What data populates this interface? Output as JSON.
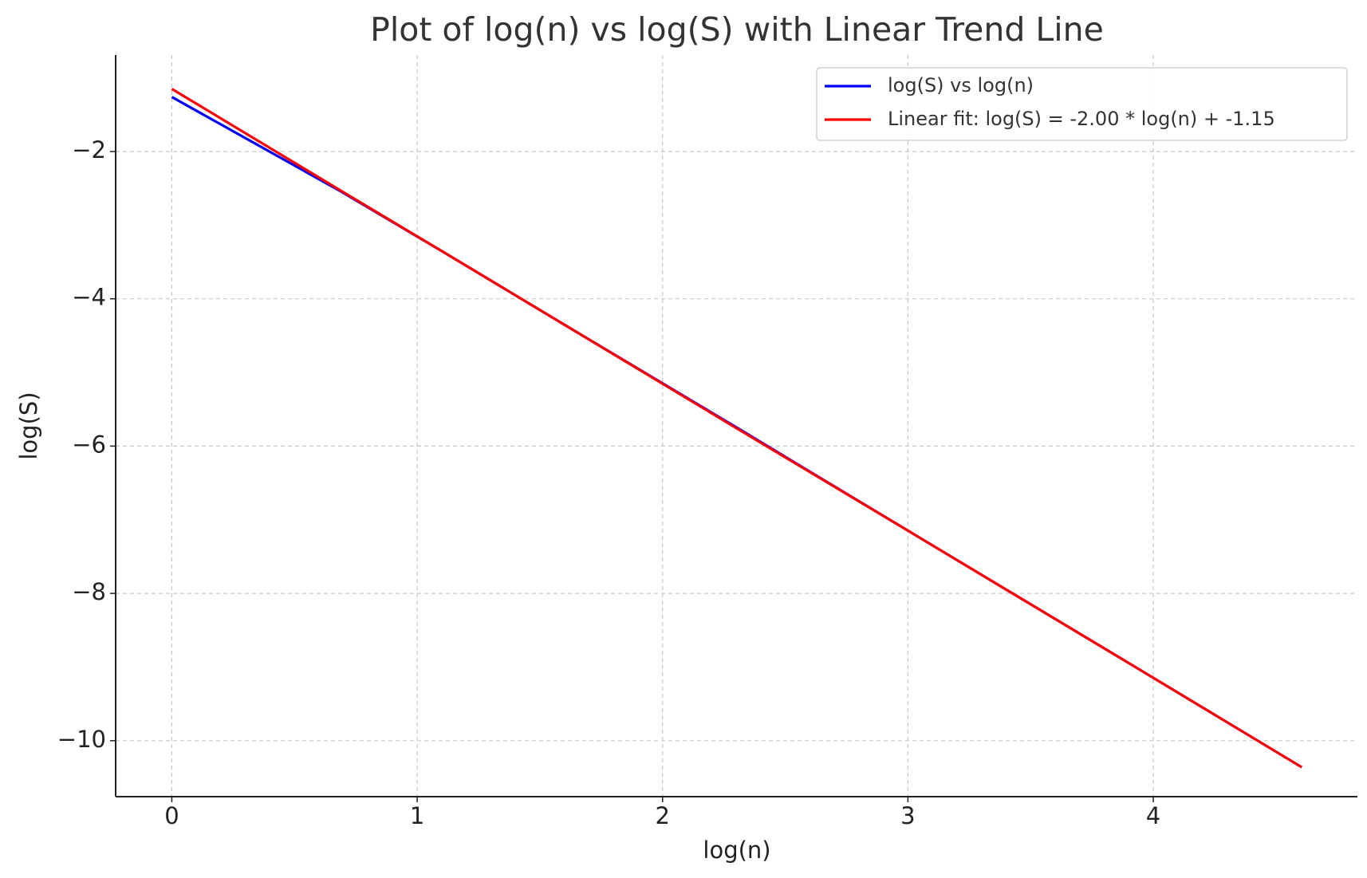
{
  "chart_data": {
    "type": "line",
    "title": "Plot of log(n) vs log(S) with Linear Trend Line",
    "x_label": "log(n)",
    "y_label": "log(S)",
    "x": [
      0,
      0.693,
      1.099,
      1.609,
      2.303,
      2.996,
      3.912,
      4.605
    ],
    "series": [
      {
        "name": "log(S) vs log(n)",
        "color": "#0000ff",
        "values": [
          -1.26,
          -2.55,
          -3.35,
          -4.37,
          -5.75,
          -7.14,
          -8.97,
          -10.36
        ]
      },
      {
        "name": "Linear fit: log(S) = -2.00 * log(n) + -1.15",
        "color": "#ff0000",
        "values": [
          -1.15,
          -2.54,
          -3.35,
          -4.37,
          -5.76,
          -7.14,
          -8.97,
          -10.36
        ]
      }
    ],
    "xlim": [
      -0.229,
      4.832
    ],
    "ylim": [
      -10.76,
      -0.69
    ],
    "xticks": [
      0,
      1,
      2,
      3,
      4
    ],
    "yticks": [
      {
        "value": -10,
        "label": "−10"
      },
      {
        "value": -8,
        "label": "−8"
      },
      {
        "value": -6,
        "label": "−6"
      },
      {
        "value": -4,
        "label": "−4"
      },
      {
        "value": -2,
        "label": "−2"
      }
    ],
    "grid": true,
    "legend": "upper right"
  }
}
